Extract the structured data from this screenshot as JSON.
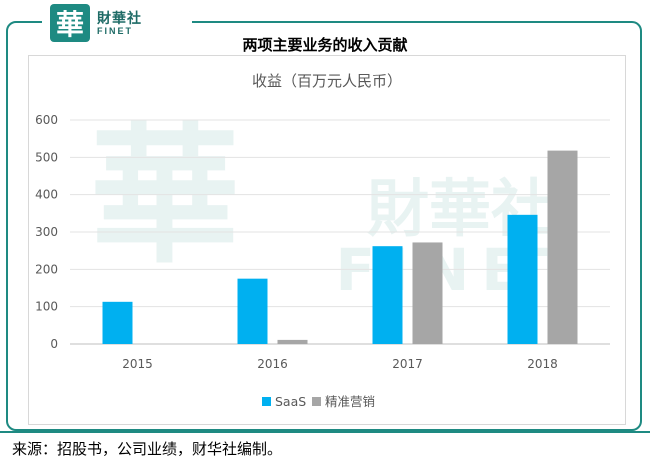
{
  "brand": {
    "name_cn": "財華社",
    "name_en": "FINET",
    "logo_char": "華"
  },
  "header": {
    "title": "两项主要业务的收入贡献"
  },
  "footer": {
    "source": "来源：招股书，公司业绩，财华社编制。"
  },
  "watermark": {
    "char": "華",
    "cn": "財華社",
    "en": "FINET"
  },
  "colors": {
    "accent": "#1e8a82",
    "saas": "#00b0f0",
    "precision": "#a6a6a6"
  },
  "chart_data": {
    "type": "bar",
    "title": "收益（百万元人民币）",
    "categories": [
      "2015",
      "2016",
      "2017",
      "2018"
    ],
    "series": [
      {
        "name": "SaaS",
        "values": [
          113,
          175,
          262,
          346
        ],
        "color": "#00b0f0"
      },
      {
        "name": "精准营销",
        "values": [
          0,
          11,
          272,
          518
        ],
        "color": "#a6a6a6"
      }
    ],
    "ylim": [
      0,
      600
    ],
    "yticks": [
      0,
      100,
      200,
      300,
      400,
      500,
      600
    ],
    "grid": true,
    "legend": "bottom"
  }
}
